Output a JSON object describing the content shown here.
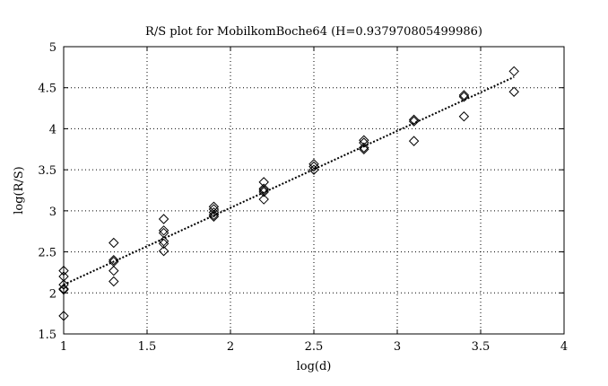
{
  "chart_data": {
    "type": "scatter",
    "title": "R/S plot for MobilkomBoche64 (H=0.937970805499986)",
    "xlabel": "log(d)",
    "ylabel": "log(R/S)",
    "xlim": [
      1,
      4
    ],
    "ylim": [
      1.5,
      5
    ],
    "xticks": [
      1,
      1.5,
      2,
      2.5,
      3,
      3.5,
      4
    ],
    "yticks": [
      1.5,
      2,
      2.5,
      3,
      3.5,
      4,
      4.5,
      5
    ],
    "xtick_labels": [
      "1",
      "1.5",
      "2",
      "2.5",
      "3",
      "3.5",
      "4"
    ],
    "ytick_labels": [
      "1.5",
      "2",
      "2.5",
      "3",
      "3.5",
      "4",
      "4.5",
      "5"
    ],
    "grid": true,
    "marker": "diamond",
    "points": [
      {
        "x": 1.0,
        "y": 2.27
      },
      {
        "x": 1.0,
        "y": 2.2
      },
      {
        "x": 1.0,
        "y": 2.1
      },
      {
        "x": 1.0,
        "y": 2.05
      },
      {
        "x": 1.0,
        "y": 2.04
      },
      {
        "x": 1.0,
        "y": 1.72
      },
      {
        "x": 1.3,
        "y": 2.61
      },
      {
        "x": 1.3,
        "y": 2.4
      },
      {
        "x": 1.3,
        "y": 2.38
      },
      {
        "x": 1.3,
        "y": 2.27
      },
      {
        "x": 1.3,
        "y": 2.14
      },
      {
        "x": 1.6,
        "y": 2.9
      },
      {
        "x": 1.6,
        "y": 2.76
      },
      {
        "x": 1.6,
        "y": 2.73
      },
      {
        "x": 1.6,
        "y": 2.63
      },
      {
        "x": 1.6,
        "y": 2.6
      },
      {
        "x": 1.6,
        "y": 2.51
      },
      {
        "x": 1.9,
        "y": 3.05
      },
      {
        "x": 1.9,
        "y": 3.02
      },
      {
        "x": 1.9,
        "y": 2.98
      },
      {
        "x": 1.9,
        "y": 2.95
      },
      {
        "x": 1.9,
        "y": 2.93
      },
      {
        "x": 2.2,
        "y": 3.35
      },
      {
        "x": 2.2,
        "y": 3.27
      },
      {
        "x": 2.2,
        "y": 3.25
      },
      {
        "x": 2.2,
        "y": 3.23
      },
      {
        "x": 2.2,
        "y": 3.14
      },
      {
        "x": 2.5,
        "y": 3.57
      },
      {
        "x": 2.5,
        "y": 3.54
      },
      {
        "x": 2.5,
        "y": 3.5
      },
      {
        "x": 2.8,
        "y": 3.86
      },
      {
        "x": 2.8,
        "y": 3.83
      },
      {
        "x": 2.8,
        "y": 3.77
      },
      {
        "x": 2.8,
        "y": 3.75
      },
      {
        "x": 3.1,
        "y": 4.11
      },
      {
        "x": 3.1,
        "y": 4.09
      },
      {
        "x": 3.1,
        "y": 3.85
      },
      {
        "x": 3.4,
        "y": 4.41
      },
      {
        "x": 3.4,
        "y": 4.39
      },
      {
        "x": 3.4,
        "y": 4.15
      },
      {
        "x": 3.7,
        "y": 4.7
      },
      {
        "x": 3.7,
        "y": 4.45
      }
    ],
    "fit_line": {
      "x": [
        1.0,
        3.7
      ],
      "y": [
        2.1,
        4.63
      ],
      "style": "dotted"
    }
  }
}
